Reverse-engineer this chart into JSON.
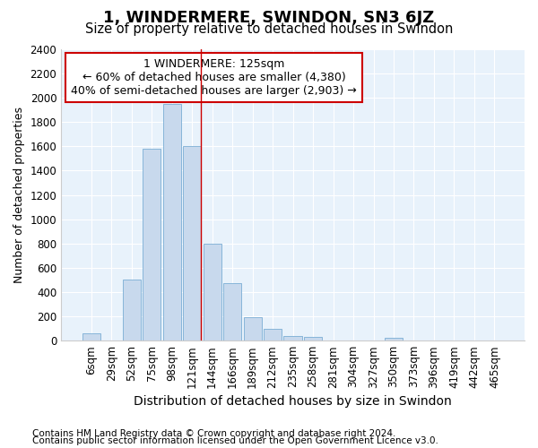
{
  "title": "1, WINDERMERE, SWINDON, SN3 6JZ",
  "subtitle": "Size of property relative to detached houses in Swindon",
  "xlabel": "Distribution of detached houses by size in Swindon",
  "ylabel": "Number of detached properties",
  "categories": [
    "6sqm",
    "29sqm",
    "52sqm",
    "75sqm",
    "98sqm",
    "121sqm",
    "144sqm",
    "166sqm",
    "189sqm",
    "212sqm",
    "235sqm",
    "258sqm",
    "281sqm",
    "304sqm",
    "327sqm",
    "350sqm",
    "373sqm",
    "396sqm",
    "419sqm",
    "442sqm",
    "465sqm"
  ],
  "values": [
    60,
    0,
    500,
    1580,
    1950,
    1600,
    800,
    475,
    190,
    100,
    40,
    30,
    5,
    0,
    0,
    20,
    0,
    0,
    0,
    0,
    0
  ],
  "bar_color": "#c8d9ed",
  "bar_edge_color": "#7aadd4",
  "red_line_index": 5,
  "annotation_line1": "1 WINDERMERE: 125sqm",
  "annotation_line2": "← 60% of detached houses are smaller (4,380)",
  "annotation_line3": "40% of semi-detached houses are larger (2,903) →",
  "ylim_max": 2400,
  "yticks": [
    0,
    200,
    400,
    600,
    800,
    1000,
    1200,
    1400,
    1600,
    1800,
    2000,
    2200,
    2400
  ],
  "footnote1": "Contains HM Land Registry data © Crown copyright and database right 2024.",
  "footnote2": "Contains public sector information licensed under the Open Government Licence v3.0.",
  "fig_bg_color": "#ffffff",
  "plot_bg_color": "#e8f2fb",
  "grid_color": "#ffffff",
  "title_fontsize": 13,
  "subtitle_fontsize": 10.5,
  "xlabel_fontsize": 10,
  "ylabel_fontsize": 9,
  "tick_fontsize": 8.5,
  "annotation_fontsize": 9,
  "footnote_fontsize": 7.5
}
